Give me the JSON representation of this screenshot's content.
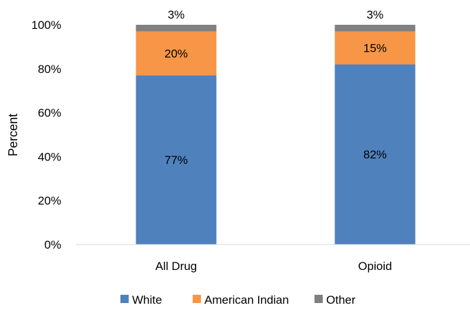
{
  "chart_data": {
    "type": "bar",
    "stacked": true,
    "categories": [
      "All Drug",
      "Opioid"
    ],
    "series": [
      {
        "name": "White",
        "values": [
          77,
          82
        ],
        "color": "#4f81bd"
      },
      {
        "name": "American Indian",
        "values": [
          20,
          15
        ],
        "color": "#f79646"
      },
      {
        "name": "Other",
        "values": [
          3,
          3
        ],
        "color": "#808080"
      }
    ],
    "data_labels": [
      [
        "77%",
        "82%"
      ],
      [
        "20%",
        "15%"
      ],
      [
        "3%",
        "3%"
      ]
    ],
    "ylabel": "Percent",
    "xlabel": "",
    "ylim": [
      0,
      100
    ],
    "yticks": [
      "0%",
      "20%",
      "40%",
      "60%",
      "80%",
      "100%"
    ],
    "gridlines": false,
    "legend_position": "bottom"
  }
}
